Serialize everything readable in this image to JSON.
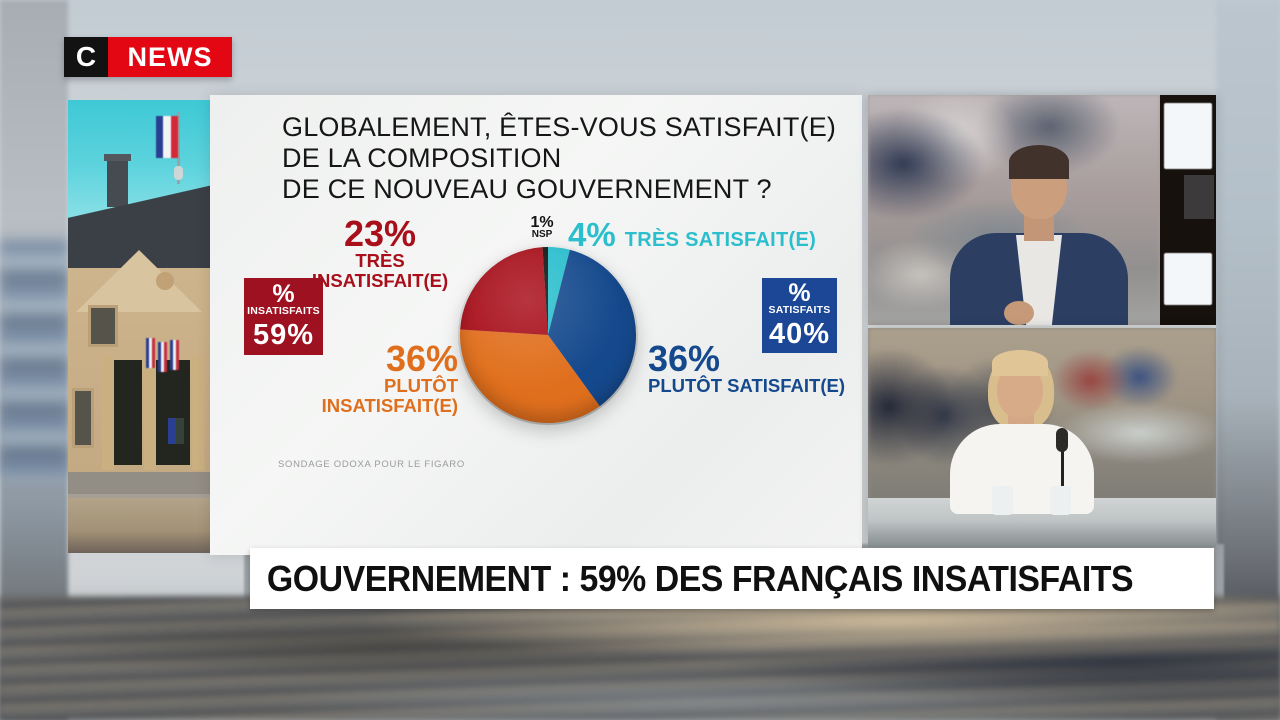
{
  "channel": {
    "logo_c": "C",
    "logo_news": "NEWS"
  },
  "frame_number": "59",
  "graphic": {
    "title_lines": [
      "GLOBALEMENT, ÊTES-VOUS SATISFAIT(E)",
      "DE LA COMPOSITION",
      "DE CE NOUVEAU GOUVERNEMENT ?"
    ]
  },
  "chart_data": {
    "type": "pie",
    "title": "GLOBALEMENT, ÊTES-VOUS SATISFAIT(E) DE LA COMPOSITION DE CE NOUVEAU GOUVERNEMENT ?",
    "source": "SONDAGE ODOXA POUR LE FIGARO",
    "direction": "clockwise",
    "start_angle_deg": 0,
    "slices": [
      {
        "key": "tres-satisfait",
        "name": "TRÈS SATISFAIT(E)",
        "pct_label": "4%",
        "value": 4,
        "color": "#2bbecd"
      },
      {
        "key": "plutot-satisfait",
        "name": "PLUTÔT SATISFAIT(E)",
        "pct_label": "36%",
        "value": 36,
        "color": "#15498d"
      },
      {
        "key": "plutot-insatisfait",
        "name": "PLUTÔT INSATISFAIT(E)",
        "pct_label": "36%",
        "value": 36,
        "color": "#e06f1d"
      },
      {
        "key": "tres-insatisfait",
        "name": "TRÈS INSATISFAIT(E)",
        "pct_label": "23%",
        "value": 23,
        "color": "#a80f1a"
      },
      {
        "key": "nsp",
        "name": "NSP",
        "pct_label": "1%",
        "value": 1,
        "color": "#141414"
      }
    ],
    "aggregates": {
      "insatisfaits": {
        "sign": "%",
        "label": "INSATISFAITS",
        "value": "59%",
        "color": "#9e1120"
      },
      "satisfaits": {
        "sign": "%",
        "label": "SATISFAITS",
        "value": "40%",
        "color": "#1c4796"
      }
    }
  },
  "banner": {
    "text": "GOUVERNEMENT : 59% DES FRANÇAIS INSATISFAITS"
  },
  "colors": {
    "brand_red": "#e30613",
    "brand_black": "#121212",
    "banner_bg": "#ffffff",
    "panel_bg": "#f2f3f2"
  }
}
